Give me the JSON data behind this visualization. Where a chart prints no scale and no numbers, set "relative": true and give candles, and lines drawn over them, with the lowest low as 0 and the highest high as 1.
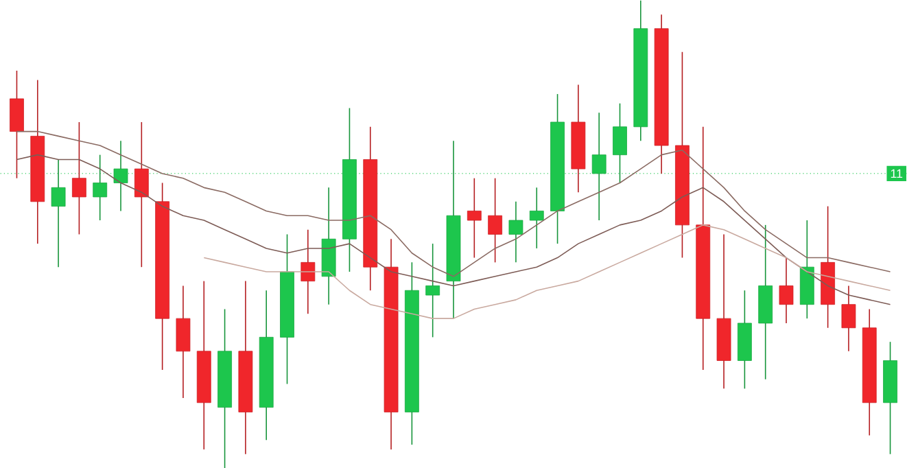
{
  "chart_data": {
    "type": "candlestick",
    "relative": true,
    "categories": [
      null,
      null,
      null,
      null,
      null,
      null,
      null,
      null,
      null,
      null,
      null,
      null,
      null,
      null,
      null,
      null,
      null,
      null,
      null,
      null,
      null,
      null,
      null,
      null,
      null,
      null,
      null,
      null,
      null,
      null,
      null,
      null,
      null,
      null,
      null,
      null,
      null,
      null,
      null,
      null,
      null,
      null,
      null
    ],
    "ohlc": [
      [
        0.79,
        0.85,
        0.62,
        0.72
      ],
      [
        0.71,
        0.83,
        0.48,
        0.57
      ],
      [
        0.56,
        0.66,
        0.43,
        0.6
      ],
      [
        0.62,
        0.74,
        0.5,
        0.58
      ],
      [
        0.58,
        0.67,
        0.53,
        0.61
      ],
      [
        0.61,
        0.7,
        0.55,
        0.64
      ],
      [
        0.64,
        0.74,
        0.43,
        0.58
      ],
      [
        0.57,
        0.61,
        0.21,
        0.32
      ],
      [
        0.32,
        0.39,
        0.15,
        0.25
      ],
      [
        0.25,
        0.4,
        0.04,
        0.14
      ],
      [
        0.13,
        0.34,
        0,
        0.25
      ],
      [
        0.25,
        0.4,
        0.03,
        0.12
      ],
      [
        0.13,
        0.38,
        0.06,
        0.28
      ],
      [
        0.28,
        0.5,
        0.18,
        0.42
      ],
      [
        0.44,
        0.51,
        0.33,
        0.4
      ],
      [
        0.41,
        0.6,
        0.35,
        0.49
      ],
      [
        0.49,
        0.77,
        0.42,
        0.66
      ],
      [
        0.66,
        0.73,
        0.38,
        0.43
      ],
      [
        0.43,
        0.49,
        0.04,
        0.12
      ],
      [
        0.12,
        0.44,
        0.05,
        0.38
      ],
      [
        0.37,
        0.48,
        0.28,
        0.39
      ],
      [
        0.4,
        0.7,
        0.32,
        0.54
      ],
      [
        0.55,
        0.62,
        0.45,
        0.53
      ],
      [
        0.54,
        0.62,
        0.44,
        0.5
      ],
      [
        0.5,
        0.57,
        0.44,
        0.53
      ],
      [
        0.53,
        0.6,
        0.47,
        0.55
      ],
      [
        0.55,
        0.8,
        0.48,
        0.74
      ],
      [
        0.74,
        0.82,
        0.59,
        0.64
      ],
      [
        0.63,
        0.76,
        0.53,
        0.67
      ],
      [
        0.67,
        0.78,
        0.61,
        0.73
      ],
      [
        0.73,
        1,
        0.7,
        0.94
      ],
      [
        0.94,
        0.97,
        0.63,
        0.69
      ],
      [
        0.69,
        0.89,
        0.45,
        0.52
      ],
      [
        0.52,
        0.73,
        0.21,
        0.32
      ],
      [
        0.32,
        0.5,
        0.17,
        0.23
      ],
      [
        0.23,
        0.38,
        0.17,
        0.31
      ],
      [
        0.31,
        0.52,
        0.19,
        0.39
      ],
      [
        0.39,
        0.45,
        0.31,
        0.35
      ],
      [
        0.35,
        0.53,
        0.32,
        0.43
      ],
      [
        0.44,
        0.56,
        0.3,
        0.35
      ],
      [
        0.35,
        0.39,
        0.25,
        0.3
      ],
      [
        0.3,
        0.34,
        0.07,
        0.14
      ],
      [
        0.14,
        0.27,
        0.03,
        0.23
      ]
    ],
    "colors": [
      "#f0262b",
      "#f0262b",
      "#1dc64d",
      "#f0262b",
      "#1dc64d",
      "#1dc64d",
      "#f0262b",
      "#f0262b",
      "#f0262b",
      "#f0262b",
      "#1dc64d",
      "#f0262b",
      "#1dc64d",
      "#1dc64d",
      "#f0262b",
      "#1dc64d",
      "#1dc64d",
      "#f0262b",
      "#f0262b",
      "#1dc64d",
      "#1dc64d",
      "#1dc64d",
      "#f0262b",
      "#f0262b",
      "#1dc64d",
      "#1dc64d",
      "#1dc64d",
      "#f0262b",
      "#1dc64d",
      "#1dc64d",
      "#1dc64d",
      "#f0262b",
      "#f0262b",
      "#f0262b",
      "#f0262b",
      "#1dc64d",
      "#1dc64d",
      "#f0262b",
      "#1dc64d",
      "#f0262b",
      "#f0262b",
      "#f0262b",
      "#1dc64d"
    ],
    "series": [
      {
        "type": "line",
        "color": "#8a6a62",
        "values": [
          0.72,
          0.72,
          0.71,
          0.7,
          0.69,
          0.67,
          0.65,
          0.63,
          0.62,
          0.6,
          0.59,
          0.57,
          0.55,
          0.54,
          0.54,
          0.53,
          0.53,
          0.54,
          0.51,
          0.46,
          0.43,
          0.41,
          0.44,
          0.47,
          0.49,
          0.52,
          0.55,
          0.57,
          0.59,
          0.61,
          0.64,
          0.67,
          0.68,
          0.64,
          0.6,
          0.55,
          0.51,
          0.48,
          0.45,
          0.45,
          0.44,
          0.43,
          0.42
        ]
      },
      {
        "type": "line",
        "color": "#7d5b55",
        "values": [
          0.66,
          0.67,
          0.66,
          0.66,
          0.64,
          0.61,
          0.59,
          0.56,
          0.54,
          0.53,
          0.51,
          0.49,
          0.47,
          0.46,
          0.47,
          0.47,
          0.48,
          0.45,
          0.42,
          0.41,
          0.4,
          0.39,
          0.4,
          0.41,
          0.42,
          0.43,
          0.45,
          0.48,
          0.5,
          0.52,
          0.53,
          0.55,
          0.58,
          0.6,
          0.57,
          0.53,
          0.49,
          0.45,
          0.42,
          0.39,
          0.37,
          0.36,
          0.35
        ]
      },
      {
        "type": "line",
        "color": "#c9a99f",
        "values": [
          null,
          null,
          null,
          null,
          null,
          null,
          null,
          null,
          null,
          0.45,
          0.44,
          0.43,
          0.42,
          0.42,
          0.42,
          0.42,
          0.38,
          0.35,
          0.34,
          0.33,
          0.32,
          0.32,
          0.34,
          0.35,
          0.36,
          0.38,
          0.39,
          0.4,
          0.42,
          0.44,
          0.46,
          0.48,
          0.5,
          0.52,
          0.51,
          0.49,
          0.47,
          0.45,
          0.42,
          0.41,
          0.4,
          0.39,
          0.38
        ]
      }
    ],
    "ref_lines": [
      {
        "axis": "y",
        "value": 0.63,
        "color": "#1dc64d",
        "line_style": "dotted"
      }
    ],
    "annotations": [
      "11"
    ]
  }
}
